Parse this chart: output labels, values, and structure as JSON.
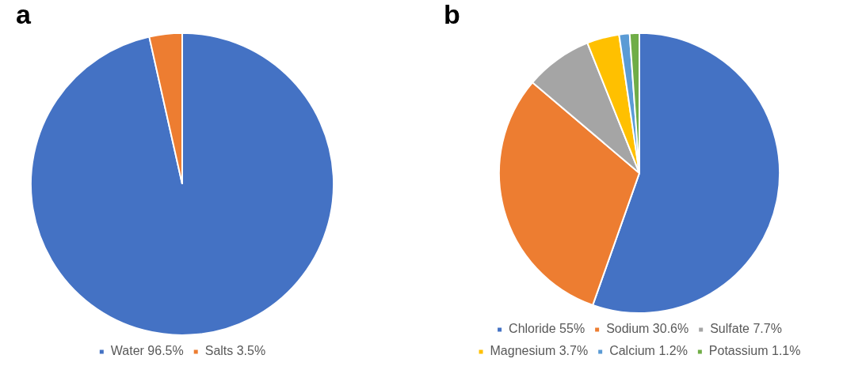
{
  "chart_data": [
    {
      "type": "pie",
      "title": "a",
      "categories": [
        "Water 96.5%",
        "Salts 3.5%"
      ],
      "values": [
        96.5,
        3.5
      ],
      "colors": [
        "#4472c4",
        "#ed7d31"
      ],
      "legend": "bottom"
    },
    {
      "type": "pie",
      "title": "b",
      "categories": [
        "Chloride 55%",
        "Sodium 30.6%",
        "Sulfate 7.7%",
        "Magnesium 3.7%",
        "Calcium 1.2%",
        "Potassium 1.1%"
      ],
      "values": [
        55,
        30.6,
        7.7,
        3.7,
        1.2,
        1.1
      ],
      "colors": [
        "#4472c4",
        "#ed7d31",
        "#a5a5a5",
        "#ffc000",
        "#5b9bd5",
        "#70ad47"
      ],
      "legend": "bottom"
    }
  ]
}
